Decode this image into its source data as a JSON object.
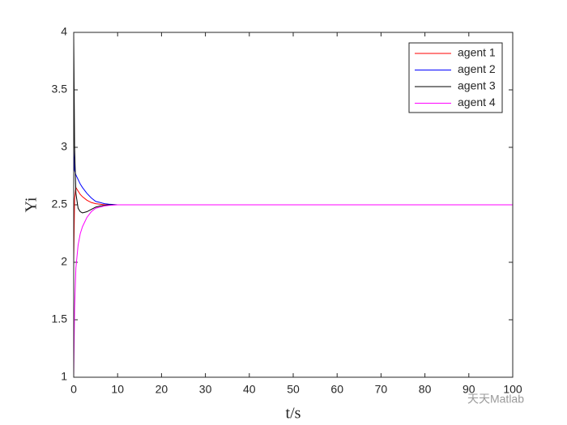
{
  "chart_data": {
    "type": "line",
    "xlabel": "t/s",
    "ylabel": "Yi",
    "x": [
      0,
      0.2,
      0.5,
      1,
      1.5,
      2,
      3,
      4,
      5,
      6,
      7,
      8,
      10,
      20,
      30,
      40,
      50,
      60,
      70,
      80,
      90,
      100
    ],
    "series": [
      {
        "name": "agent 1",
        "color": "#ff0000",
        "values": [
          2,
          2.55,
          2.65,
          2.62,
          2.59,
          2.57,
          2.54,
          2.52,
          2.51,
          2.505,
          2.5,
          2.5,
          2.5,
          2.5,
          2.5,
          2.5,
          2.5,
          2.5,
          2.5,
          2.5,
          2.5,
          2.5
        ]
      },
      {
        "name": "agent 2",
        "color": "#0000ff",
        "values": [
          3,
          2.8,
          2.76,
          2.72,
          2.68,
          2.65,
          2.6,
          2.56,
          2.53,
          2.52,
          2.51,
          2.505,
          2.5,
          2.5,
          2.5,
          2.5,
          2.5,
          2.5,
          2.5,
          2.5,
          2.5,
          2.5
        ]
      },
      {
        "name": "agent 3",
        "color": "#000000",
        "values": [
          4,
          3.0,
          2.6,
          2.47,
          2.44,
          2.43,
          2.44,
          2.46,
          2.48,
          2.49,
          2.495,
          2.5,
          2.5,
          2.5,
          2.5,
          2.5,
          2.5,
          2.5,
          2.5,
          2.5,
          2.5,
          2.5
        ]
      },
      {
        "name": "agent 4",
        "color": "#ff00ff",
        "values": [
          1,
          1.6,
          1.95,
          2.15,
          2.25,
          2.31,
          2.39,
          2.44,
          2.47,
          2.48,
          2.49,
          2.495,
          2.5,
          2.5,
          2.5,
          2.5,
          2.5,
          2.5,
          2.5,
          2.5,
          2.5,
          2.5
        ]
      }
    ],
    "xlim": [
      0,
      100
    ],
    "xticks": [
      0,
      10,
      20,
      30,
      40,
      50,
      60,
      70,
      80,
      90,
      100
    ],
    "ylim": [
      1,
      4
    ],
    "yticks": [
      1,
      1.5,
      2,
      2.5,
      3,
      3.5,
      4
    ],
    "grid": false,
    "legend": "northeast"
  },
  "watermark": "天天Matlab"
}
